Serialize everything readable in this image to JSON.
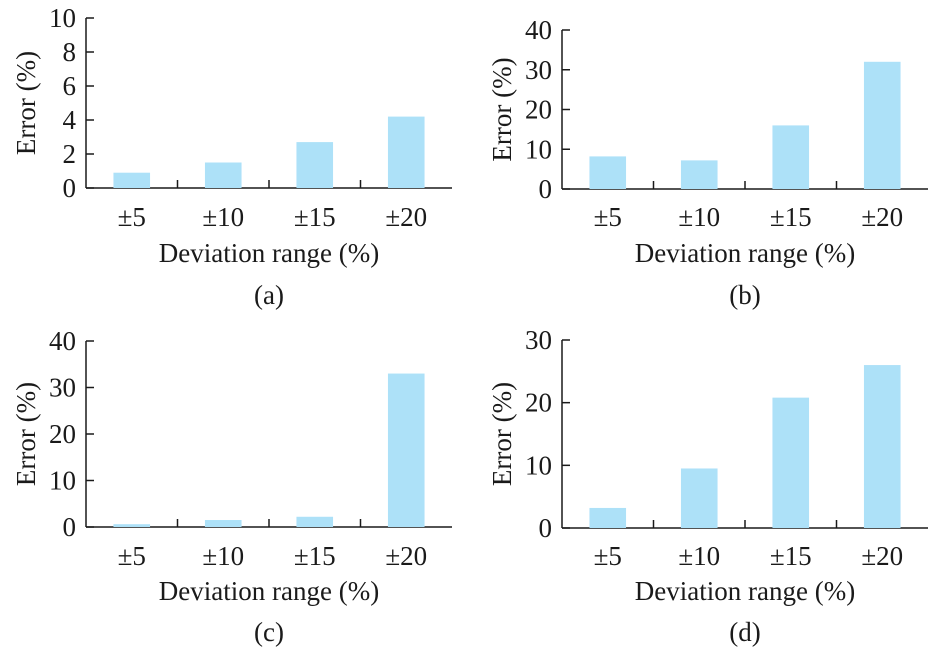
{
  "bar_color": "#ADE1F8",
  "chart_data": [
    {
      "type": "bar",
      "caption": "(a)",
      "categories": [
        "±5",
        "±10",
        "±15",
        "±20"
      ],
      "values": [
        0.9,
        1.5,
        2.7,
        4.2
      ],
      "xlabel": "Deviation range (%)",
      "ylabel": "Error (%)",
      "ylim": [
        0,
        10
      ],
      "yticks": [
        0,
        2,
        4,
        6,
        8,
        10
      ]
    },
    {
      "type": "bar",
      "caption": "(b)",
      "categories": [
        "±5",
        "±10",
        "±15",
        "±20"
      ],
      "values": [
        8.2,
        7.2,
        16,
        32
      ],
      "xlabel": "Deviation range (%)",
      "ylabel": "Error (%)",
      "ylim": [
        0,
        40
      ],
      "yticks": [
        0,
        10,
        20,
        30,
        40
      ]
    },
    {
      "type": "bar",
      "caption": "(c)",
      "categories": [
        "±5",
        "±10",
        "±15",
        "±20"
      ],
      "values": [
        0.6,
        1.5,
        2.2,
        33
      ],
      "xlabel": "Deviation range (%)",
      "ylabel": "Error (%)",
      "ylim": [
        0,
        40
      ],
      "yticks": [
        0,
        10,
        20,
        30,
        40
      ]
    },
    {
      "type": "bar",
      "caption": "(d)",
      "categories": [
        "±5",
        "±10",
        "±15",
        "±20"
      ],
      "values": [
        3.2,
        9.5,
        20.8,
        26
      ],
      "xlabel": "Deviation range (%)",
      "ylabel": "Error (%)",
      "ylim": [
        0,
        30
      ],
      "yticks": [
        0,
        10,
        20,
        30
      ]
    }
  ]
}
